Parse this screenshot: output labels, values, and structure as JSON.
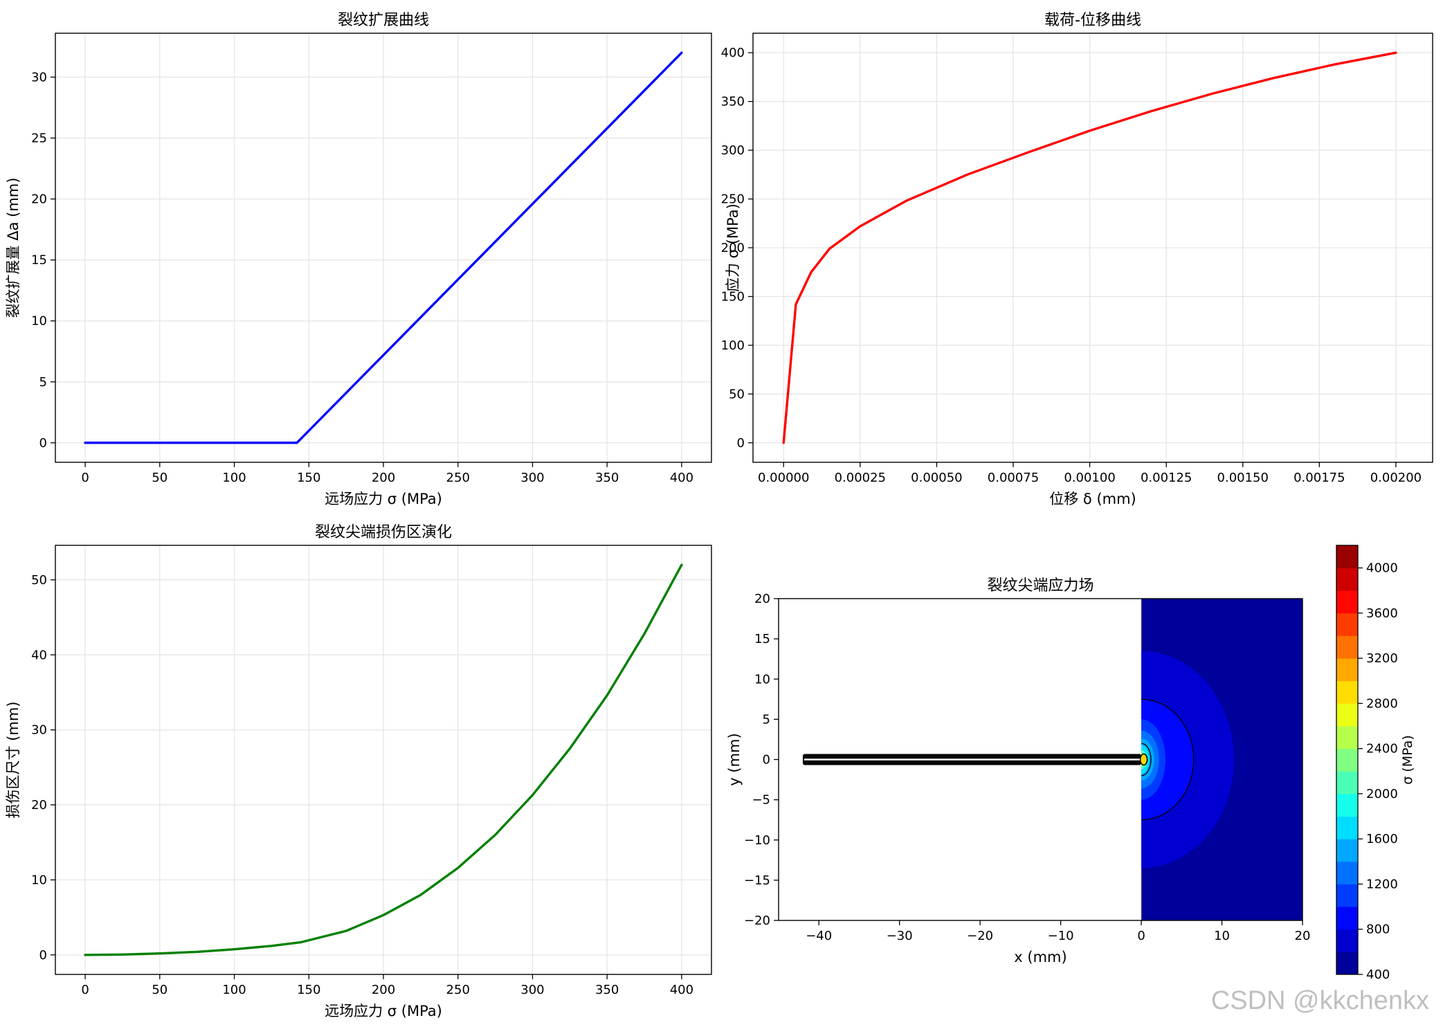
{
  "watermark": "CSDN @kkchenkx",
  "chart_data": [
    {
      "type": "line",
      "title": "裂纹扩展曲线",
      "xlabel": "远场应力 σ (MPa)",
      "ylabel": "裂纹扩展量 Δa (mm)",
      "xlim": [
        -20,
        420
      ],
      "ylim": [
        -1.6,
        33.6
      ],
      "xticks": [
        0,
        50,
        100,
        150,
        200,
        250,
        300,
        350,
        400
      ],
      "yticks": [
        0,
        5,
        10,
        15,
        20,
        25,
        30
      ],
      "grid": true,
      "color": "#0000ff",
      "series": [
        {
          "x": [
            0,
            142,
            400
          ],
          "y": [
            0,
            0,
            32
          ]
        }
      ]
    },
    {
      "type": "line",
      "title": "载荷-位移曲线",
      "xlabel": "位移 δ (mm)",
      "ylabel": "应力 σ (MPa)",
      "xlim": [
        -0.0001,
        0.00212
      ],
      "ylim": [
        -20,
        420
      ],
      "xticks": [
        0,
        0.00025,
        0.0005,
        0.00075,
        0.001,
        0.00125,
        0.0015,
        0.00175,
        0.002
      ],
      "xtick_labels": [
        "0.00000",
        "0.00025",
        "0.00050",
        "0.00075",
        "0.00100",
        "0.00125",
        "0.00150",
        "0.00175",
        "0.00200"
      ],
      "yticks": [
        0,
        50,
        100,
        150,
        200,
        250,
        300,
        350,
        400
      ],
      "grid": true,
      "color": "#ff0000",
      "series": [
        {
          "x": [
            0,
            4e-05,
            9e-05,
            0.00015,
            0.00025,
            0.0004,
            0.0006,
            0.0008,
            0.001,
            0.0012,
            0.0014,
            0.0016,
            0.0018,
            0.002
          ],
          "y": [
            0,
            142,
            175,
            199,
            222,
            248,
            275,
            298,
            320,
            340,
            358,
            374,
            388,
            400
          ]
        }
      ]
    },
    {
      "type": "line",
      "title": "裂纹尖端损伤区演化",
      "xlabel": "远场应力 σ (MPa)",
      "ylabel": "损伤区尺寸 (mm)",
      "xlim": [
        -20,
        420
      ],
      "ylim": [
        -2.6,
        54.6
      ],
      "xticks": [
        0,
        50,
        100,
        150,
        200,
        250,
        300,
        350,
        400
      ],
      "yticks": [
        0,
        10,
        20,
        30,
        40,
        50
      ],
      "grid": true,
      "color": "#008000",
      "series": [
        {
          "x": [
            0,
            25,
            50,
            75,
            100,
            125,
            145,
            175,
            200,
            225,
            250,
            275,
            300,
            325,
            350,
            375,
            400
          ],
          "y": [
            0,
            0.05,
            0.2,
            0.4,
            0.75,
            1.2,
            1.7,
            3.2,
            5.3,
            8.0,
            11.6,
            16.0,
            21.3,
            27.5,
            34.6,
            42.8,
            52.0
          ]
        }
      ]
    },
    {
      "type": "heatmap",
      "title": "裂纹尖端应力场",
      "xlabel": "x (mm)",
      "ylabel": "y (mm)",
      "xlim": [
        -45,
        20
      ],
      "ylim": [
        -20,
        20
      ],
      "xticks": [
        -40,
        -30,
        -20,
        -10,
        0,
        10,
        20
      ],
      "xtick_labels": [
        "−40",
        "−30",
        "−20",
        "−10",
        "0",
        "10",
        "20"
      ],
      "yticks": [
        -20,
        -15,
        -10,
        -5,
        0,
        5,
        10,
        15,
        20
      ],
      "ytick_labels": [
        "−20",
        "−15",
        "−10",
        "−5",
        "0",
        "5",
        "10",
        "15",
        "20"
      ],
      "field_region_x": [
        0,
        20
      ],
      "crack_x": [
        -42,
        0
      ],
      "contour_levels": [
        {
          "rx": 11.5,
          "ry": 13.5,
          "cx": 0,
          "value": 700
        },
        {
          "rx": 6.5,
          "ry": 7.5,
          "cx": 0,
          "value": 900
        },
        {
          "rx": 3.0,
          "ry": 5.0,
          "cx": 0,
          "value": 1050
        },
        {
          "rx": 2.2,
          "ry": 3.6,
          "cx": 0,
          "value": 1250
        },
        {
          "rx": 1.6,
          "ry": 2.6,
          "cx": 0,
          "value": 1450
        },
        {
          "rx": 1.0,
          "ry": 1.8,
          "cx": 0,
          "value": 1700
        },
        {
          "rx": 0.7,
          "ry": 1.2,
          "cx": 0,
          "value": 2000
        },
        {
          "rx": 0.45,
          "ry": 0.8,
          "cx": 0,
          "value": 2700
        },
        {
          "rx": 0.3,
          "ry": 0.5,
          "cx": 0,
          "value": 3800
        }
      ],
      "background_value": 500,
      "contour_lines": [
        {
          "rx": 6.5,
          "ry": 7.5
        },
        {
          "rx": 1.2,
          "ry": 2.0
        }
      ],
      "colorbar": {
        "label": "σ (MPa)",
        "min": 400,
        "max": 4200,
        "step": 200,
        "ticks": [
          400,
          800,
          1200,
          1600,
          2000,
          2400,
          2800,
          3200,
          3600,
          4000
        ]
      }
    }
  ]
}
